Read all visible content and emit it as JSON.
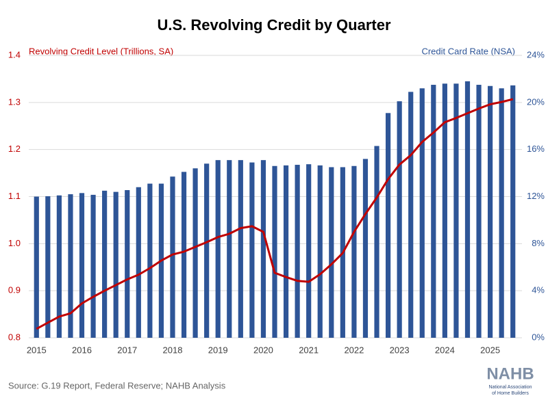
{
  "chart_data": {
    "type": "bar-line",
    "title": "U.S. Revolving Credit by Quarter",
    "y_label": "Revolving Credit Level (Trillions, SA)",
    "y2_label": "Credit Card Rate (NSA)",
    "source": "Source: G.19 Report, Federal Reserve; NAHB Analysis",
    "logo": {
      "name": "NAHB",
      "tagline": [
        "National Association",
        "of Home Builders"
      ]
    },
    "categories": [
      "2015",
      null,
      null,
      null,
      "2016",
      null,
      null,
      null,
      "2017",
      null,
      null,
      null,
      "2018",
      null,
      null,
      null,
      "2019",
      null,
      null,
      null,
      "2020",
      null,
      null,
      null,
      "2021",
      null,
      null,
      null,
      "2022",
      null,
      null,
      null,
      "2023",
      null,
      null,
      null,
      "2024",
      null,
      null,
      null,
      "2025",
      null,
      null
    ],
    "ylim": [
      0.8,
      1.4
    ],
    "yticks": [
      0.8,
      0.9,
      {
        "value": 1,
        "label": "1.0"
      },
      1.1,
      1.2,
      1.3,
      1.4
    ],
    "y2lim": [
      0,
      24
    ],
    "y2ticks": [
      {
        "value": 0,
        "label": "0%"
      },
      {
        "value": 4,
        "label": "4%"
      },
      {
        "value": 8,
        "label": "8%"
      },
      {
        "value": 12,
        "label": "12%"
      },
      {
        "value": 16,
        "label": "16%"
      },
      {
        "value": 20,
        "label": "20%"
      },
      {
        "value": 24,
        "label": "24%"
      }
    ],
    "grid": true,
    "series": [
      {
        "name": "Credit Card Rate (NSA)",
        "type": "bar",
        "axis": "y2",
        "color": "#2e5597",
        "values": [
          12.0,
          12.03,
          12.1,
          12.2,
          12.3,
          12.15,
          12.5,
          12.4,
          12.55,
          12.8,
          13.1,
          13.1,
          13.7,
          14.1,
          14.4,
          14.8,
          15.1,
          15.1,
          15.1,
          14.9,
          15.1,
          14.6,
          14.65,
          14.7,
          14.75,
          14.65,
          14.5,
          14.5,
          14.6,
          15.2,
          16.3,
          19.1,
          20.1,
          20.9,
          21.2,
          21.5,
          21.6,
          21.6,
          21.8,
          21.5,
          21.4,
          21.2,
          21.45
        ]
      },
      {
        "name": "Revolving Credit Level (Trillions, SA)",
        "type": "line",
        "color": "#c00000",
        "values": [
          0.819,
          0.832,
          0.845,
          0.852,
          0.873,
          0.887,
          0.9,
          0.912,
          0.924,
          0.934,
          0.948,
          0.964,
          0.977,
          0.983,
          0.993,
          1.003,
          1.014,
          1.021,
          1.033,
          1.037,
          1.025,
          0.938,
          0.929,
          0.921,
          0.919,
          0.935,
          0.956,
          0.98,
          1.025,
          1.063,
          1.098,
          1.137,
          1.168,
          1.188,
          1.216,
          1.236,
          1.258,
          1.267,
          1.277,
          1.287,
          1.296,
          1.301,
          1.307
        ]
      }
    ]
  }
}
